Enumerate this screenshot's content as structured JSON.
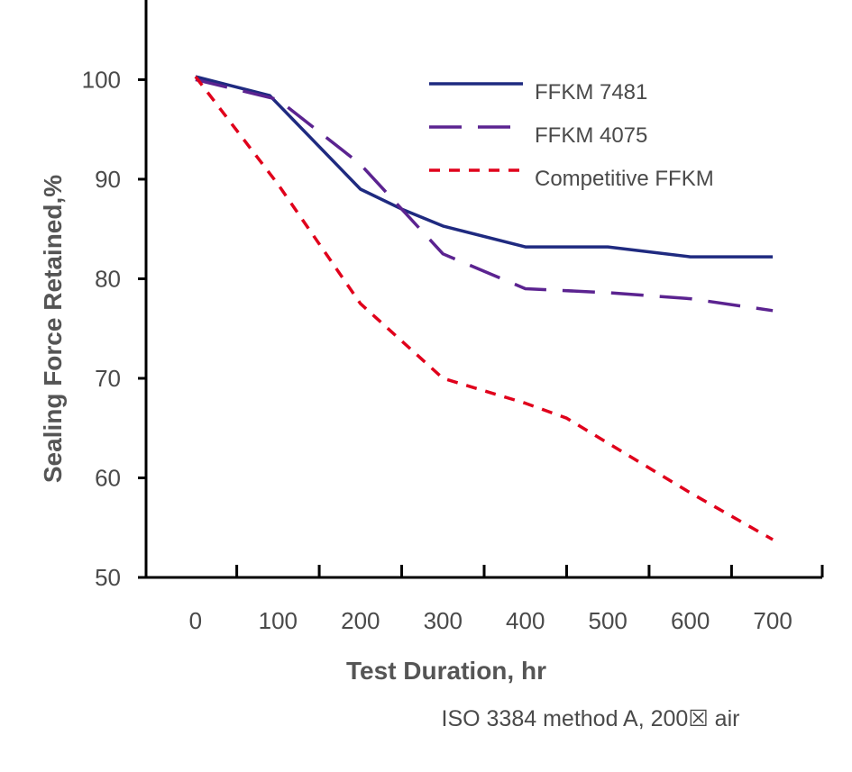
{
  "chart_data": {
    "type": "line",
    "title": "",
    "xlabel": "Test Duration, hr",
    "ylabel": "Sealing Force Retained,%",
    "note": "ISO 3384 method A, 200☒ air",
    "xlim": [
      -60,
      760
    ],
    "ylim": [
      50,
      108
    ],
    "x_ticks": [
      0,
      100,
      200,
      300,
      400,
      500,
      600,
      700
    ],
    "y_ticks": [
      50,
      60,
      70,
      80,
      90,
      100
    ],
    "grid": false,
    "legend_position": "top-right",
    "series": [
      {
        "name": "FFKM 7481",
        "color": "#1f2a80",
        "dash": "solid",
        "points": [
          [
            0,
            100.3
          ],
          [
            90,
            98.4
          ],
          [
            200,
            89
          ],
          [
            250,
            87
          ],
          [
            300,
            85.3
          ],
          [
            400,
            83.2
          ],
          [
            500,
            83.2
          ],
          [
            600,
            82.2
          ],
          [
            700,
            82.2
          ]
        ]
      },
      {
        "name": "FFKM 4075",
        "color": "#5b2390",
        "dash": "long-dash",
        "points": [
          [
            0,
            100
          ],
          [
            100,
            98
          ],
          [
            200,
            91.5
          ],
          [
            250,
            87
          ],
          [
            300,
            82.5
          ],
          [
            400,
            79
          ],
          [
            500,
            78.6
          ],
          [
            600,
            78
          ],
          [
            700,
            76.8
          ]
        ]
      },
      {
        "name": "Competitive FFKM",
        "color": "#e0001b",
        "dash": "short-dash",
        "points": [
          [
            0,
            100.3
          ],
          [
            100,
            89.5
          ],
          [
            200,
            77.5
          ],
          [
            300,
            70
          ],
          [
            400,
            67.5
          ],
          [
            450,
            66
          ],
          [
            500,
            63.5
          ],
          [
            600,
            58.5
          ],
          [
            700,
            53.8
          ]
        ]
      }
    ]
  }
}
